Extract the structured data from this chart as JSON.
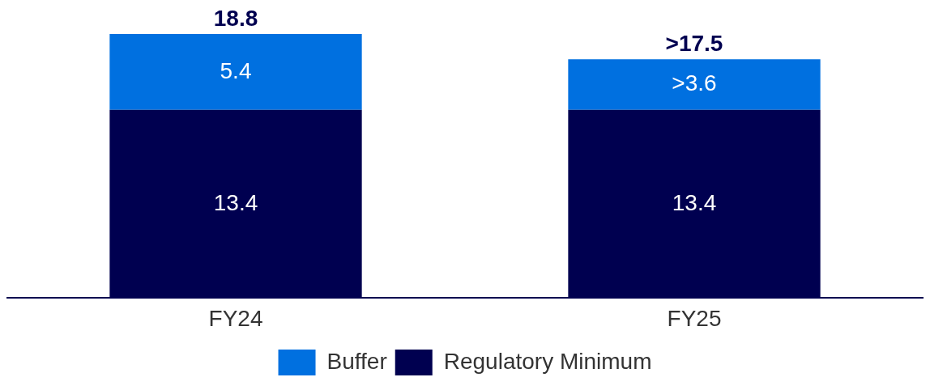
{
  "chart_data": {
    "type": "bar",
    "stacked": true,
    "categories": [
      "FY24",
      "FY25"
    ],
    "series": [
      {
        "name": "Regulatory Minimum",
        "color": "#000050",
        "values": [
          13.4,
          13.4
        ],
        "value_labels": [
          "13.4",
          "13.4"
        ]
      },
      {
        "name": "Buffer",
        "color": "#0070e0",
        "values": [
          5.4,
          3.6
        ],
        "value_labels": [
          "5.4",
          ">3.6"
        ]
      }
    ],
    "totals": [
      "18.8",
      ">17.5"
    ],
    "legend": "bottom",
    "grid": false
  }
}
